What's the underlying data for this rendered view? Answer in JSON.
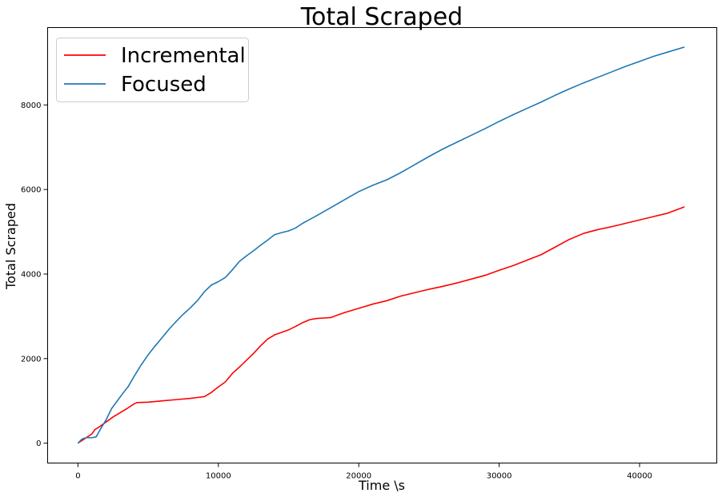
{
  "chart_data": {
    "type": "line",
    "title": "Total Scraped",
    "xlabel": "Time \\s",
    "ylabel": "Total Scraped",
    "xlim": [
      -2160,
      45500
    ],
    "ylim": [
      -470,
      9830
    ],
    "xticks": [
      0,
      10000,
      20000,
      30000,
      40000
    ],
    "yticks": [
      0,
      2000,
      4000,
      6000,
      8000
    ],
    "grid": false,
    "legend_position": "top-left",
    "series": [
      {
        "name": "Incremental",
        "color": "#ff0000",
        "x": [
          0,
          500,
          1000,
          1200,
          1500,
          2000,
          2500,
          3000,
          3500,
          4000,
          4200,
          5000,
          6000,
          7000,
          8000,
          8500,
          9000,
          9500,
          10000,
          10500,
          11000,
          11500,
          12000,
          12500,
          13000,
          13500,
          14000,
          14500,
          15000,
          15500,
          16000,
          16500,
          17000,
          17500,
          18000,
          18500,
          19000,
          19500,
          20000,
          21000,
          22000,
          23000,
          24000,
          25000,
          26000,
          27000,
          28000,
          29000,
          30000,
          31000,
          32000,
          33000,
          34000,
          35000,
          36000,
          37000,
          38000,
          39000,
          40000,
          41000,
          42000,
          43200
        ],
        "y": [
          0,
          110,
          220,
          320,
          380,
          500,
          620,
          720,
          820,
          930,
          960,
          970,
          1000,
          1030,
          1060,
          1080,
          1100,
          1200,
          1330,
          1450,
          1650,
          1800,
          1960,
          2120,
          2300,
          2460,
          2560,
          2620,
          2680,
          2760,
          2850,
          2920,
          2950,
          2960,
          2970,
          3030,
          3090,
          3140,
          3190,
          3290,
          3370,
          3480,
          3560,
          3640,
          3710,
          3790,
          3880,
          3970,
          4090,
          4200,
          4330,
          4460,
          4640,
          4820,
          4960,
          5050,
          5120,
          5200,
          5280,
          5360,
          5440,
          5590
        ]
      },
      {
        "name": "Focused",
        "color": "#1f77b4",
        "x": [
          0,
          300,
          600,
          1000,
          1300,
          1600,
          2000,
          2400,
          2800,
          3200,
          3600,
          4000,
          4500,
          5000,
          5500,
          6000,
          6500,
          7000,
          7500,
          8000,
          8500,
          9000,
          9500,
          10000,
          10500,
          11000,
          11500,
          12000,
          12500,
          13000,
          13500,
          14000,
          14500,
          15000,
          15500,
          16000,
          17000,
          18000,
          19000,
          20000,
          21000,
          22000,
          23000,
          24000,
          25000,
          26000,
          27000,
          28000,
          29000,
          30000,
          31000,
          32000,
          33000,
          34000,
          35000,
          36000,
          37000,
          38000,
          39000,
          40000,
          41000,
          42000,
          43200
        ],
        "y": [
          0,
          100,
          130,
          130,
          150,
          330,
          550,
          820,
          1000,
          1180,
          1350,
          1580,
          1850,
          2090,
          2300,
          2500,
          2700,
          2880,
          3050,
          3200,
          3370,
          3580,
          3740,
          3820,
          3920,
          4100,
          4300,
          4430,
          4550,
          4680,
          4800,
          4930,
          4980,
          5020,
          5090,
          5200,
          5380,
          5570,
          5760,
          5950,
          6100,
          6230,
          6400,
          6590,
          6780,
          6960,
          7120,
          7280,
          7440,
          7610,
          7770,
          7920,
          8070,
          8230,
          8380,
          8520,
          8650,
          8780,
          8910,
          9030,
          9150,
          9250,
          9370
        ]
      }
    ]
  }
}
